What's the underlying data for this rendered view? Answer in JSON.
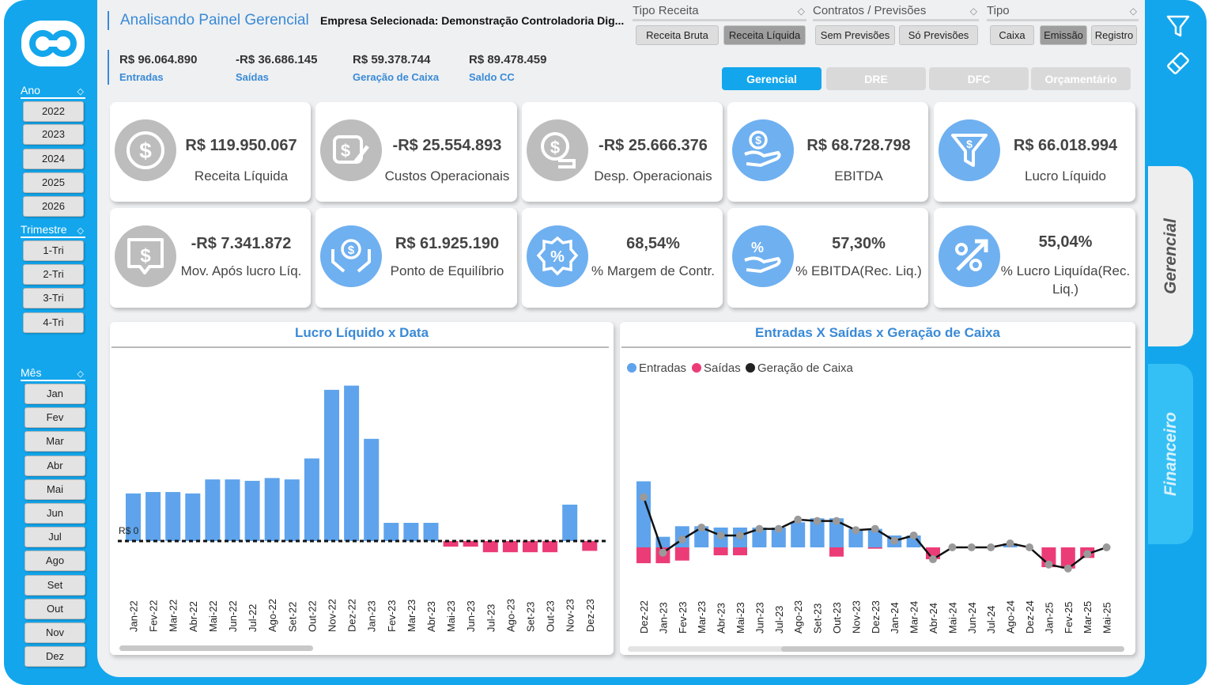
{
  "header": {
    "title": "Analisando Painel Gerencial",
    "empresa": "Empresa Selecionada: Demonstração Controladoria Dig..."
  },
  "kpis_header": [
    {
      "value": "R$ 96.064.890",
      "label": "Entradas"
    },
    {
      "value": "-R$ 36.686.145",
      "label": "Saídas"
    },
    {
      "value": "R$ 59.378.744",
      "label": "Geração de Caixa"
    },
    {
      "value": "R$ 89.478.459",
      "label": "Saldo CC"
    }
  ],
  "filters": {
    "tipo_receita": {
      "label": "Tipo Receita",
      "options": [
        "Receita Bruta",
        "Receita Líquida"
      ],
      "selected": "Receita Líquida"
    },
    "contratos": {
      "label": "Contratos / Previsões",
      "options": [
        "Sem Previsões",
        "Só Previsões"
      ]
    },
    "tipo": {
      "label": "Tipo",
      "options": [
        "Caixa",
        "Emissão",
        "Registro"
      ],
      "selected": "Emissão"
    }
  },
  "tabs": [
    "Gerencial",
    "DRE",
    "DFC",
    "Orçamentário"
  ],
  "sidebar": {
    "ano": {
      "label": "Ano",
      "items": [
        "2022",
        "2023",
        "2024",
        "2025",
        "2026"
      ]
    },
    "trimestre": {
      "label": "Trimestre",
      "items": [
        "1-Tri",
        "2-Tri",
        "3-Tri",
        "4-Tri"
      ]
    },
    "mes": {
      "label": "Mês",
      "items": [
        "Jan",
        "Fev",
        "Mar",
        "Abr",
        "Mai",
        "Jun",
        "Jul",
        "Ago",
        "Set",
        "Out",
        "Nov",
        "Dez"
      ]
    }
  },
  "side_tabs": [
    "Gerencial",
    "Financeiro"
  ],
  "cards": [
    {
      "value": "R$ 119.950.067",
      "label": "Receita Líquida",
      "icon": "dollar-coin-icon"
    },
    {
      "value": "-R$ 25.554.893",
      "label": "Custos Operacionais",
      "icon": "invoice-pen-icon"
    },
    {
      "value": "-R$ 25.666.376",
      "label": "Desp. Operacionais",
      "icon": "dollar-bubble-icon"
    },
    {
      "value": "R$ 68.728.798",
      "label": "EBITDA",
      "icon": "hand-dollar-icon"
    },
    {
      "value": "R$ 66.018.994",
      "label": "Lucro Líquido",
      "icon": "funnel-dollar-icon"
    },
    {
      "value": "-R$ 7.341.872",
      "label": "Mov. Após lucro Líq.",
      "icon": "dollar-chat-icon"
    },
    {
      "value": "R$ 61.925.190",
      "label": "Ponto de Equilíbrio",
      "icon": "hands-dollar-icon"
    },
    {
      "value": "68,54%",
      "label": "% Margem de Contr.",
      "icon": "percent-badge-icon"
    },
    {
      "value": "57,30%",
      "label": "% EBITDA(Rec. Liq.)",
      "icon": "hand-percent-icon"
    },
    {
      "value": "55,04%",
      "label": "% Lucro Liquída(Rec. Liq.)",
      "icon": "percent-arrow-icon"
    }
  ],
  "colors": {
    "accent": "#13a6ec",
    "bar_blue": "#5ea3ec",
    "bar_pink": "#ec3c78",
    "icon_gray": "#bdbdbd",
    "icon_blue": "#6fb0f0"
  },
  "chart_data": [
    {
      "type": "bar",
      "title": "Lucro Líquido x Data",
      "categories": [
        "Jan-22",
        "Fev-22",
        "Mar-22",
        "Abr-22",
        "Mai-22",
        "Jun-22",
        "Jul-22",
        "Ago-22",
        "Set-22",
        "Out-22",
        "Nov-22",
        "Dez-22",
        "Jan-23",
        "Fev-23",
        "Mar-23",
        "Abr-23",
        "Mai-23",
        "Jun-23",
        "Jul-23",
        "Ago-23",
        "Set-23",
        "Out-23",
        "Nov-23",
        "Dez-23"
      ],
      "values": [
        3.4,
        3.5,
        3.5,
        3.4,
        4.4,
        4.4,
        4.3,
        4.5,
        4.4,
        5.9,
        10.8,
        11.1,
        7.3,
        1.3,
        1.3,
        1.3,
        -0.4,
        -0.4,
        -0.8,
        -0.8,
        -0.8,
        -0.8,
        2.6,
        -0.7
      ],
      "reference_line": {
        "value": 0,
        "label": "R$ 0"
      }
    },
    {
      "type": "bar",
      "title": "Entradas X Saídas x Geração de Caixa",
      "legend": [
        "Entradas",
        "Saídas",
        "Geração de Caixa"
      ],
      "legend_position": "top-left",
      "categories": [
        "Dez-22",
        "Jan-23",
        "Fev-23",
        "Mar-23",
        "Abr-23",
        "Mai-23",
        "Jun-23",
        "Jul-23",
        "Ago-23",
        "Set-23",
        "Out-23",
        "Nov-23",
        "Dez-23",
        "Jan-24",
        "Mar-24",
        "Abr-24",
        "Mai-24",
        "Jun-24",
        "Jul-24",
        "Ago-24",
        "Dez-24",
        "Jan-25",
        "Fev-25",
        "Mar-25",
        "Mai-25"
      ],
      "series": [
        {
          "name": "Entradas",
          "values": [
            5.0,
            0.8,
            1.6,
            1.6,
            1.5,
            1.5,
            1.5,
            1.5,
            1.9,
            2.2,
            2.2,
            1.4,
            1.4,
            0.9,
            0.9,
            0,
            0,
            0,
            0,
            0.3,
            0,
            0,
            0,
            0,
            0
          ]
        },
        {
          "name": "Saídas",
          "values": [
            -1.2,
            -1.2,
            -1.0,
            0,
            -0.6,
            -0.6,
            0,
            0,
            0,
            0,
            -0.7,
            0,
            -0.1,
            0,
            0,
            -0.9,
            0,
            0,
            0,
            0,
            0,
            -1.5,
            -1.6,
            -0.8,
            0
          ]
        },
        {
          "name": "Geração de Caixa",
          "values": [
            3.8,
            -0.4,
            0.6,
            1.5,
            0.9,
            0.9,
            1.4,
            1.4,
            2.1,
            2.0,
            2.0,
            1.3,
            1.4,
            0.5,
            0.9,
            -0.9,
            0,
            0,
            0,
            0.3,
            0,
            -1.3,
            -1.6,
            -0.5,
            0
          ]
        }
      ]
    }
  ]
}
